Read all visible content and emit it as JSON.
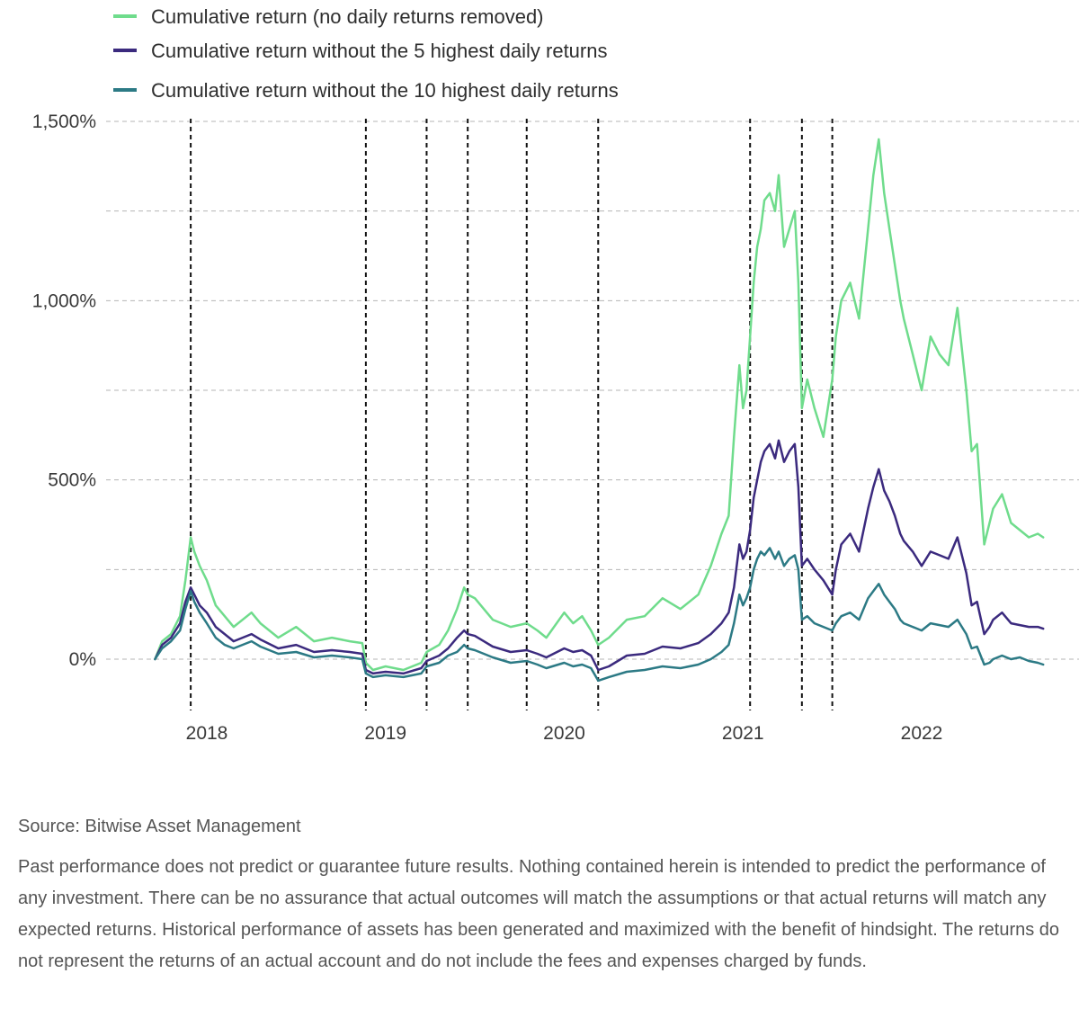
{
  "chart_data": {
    "type": "line",
    "title": "",
    "xlabel": "",
    "ylabel": "",
    "ylim": [
      -200,
      1500
    ],
    "y_ticks": [
      {
        "value": 0,
        "label": "0%"
      },
      {
        "value": 500,
        "label": "500%"
      },
      {
        "value": 1000,
        "label": "1,000%"
      },
      {
        "value": 1500,
        "label": "1,500%"
      }
    ],
    "y_gridlines": [
      0,
      250,
      500,
      750,
      1000,
      1250,
      1500
    ],
    "x_range": [
      2017.5,
      2022.9
    ],
    "x_ticks": [
      {
        "value": 2018.0,
        "label": "2018"
      },
      {
        "value": 2019.0,
        "label": "2019"
      },
      {
        "value": 2020.0,
        "label": "2020"
      },
      {
        "value": 2021.0,
        "label": "2021"
      },
      {
        "value": 2022.0,
        "label": "2022"
      }
    ],
    "event_lines": [
      2017.91,
      2018.89,
      2019.23,
      2019.46,
      2019.79,
      2020.19,
      2021.04,
      2021.33,
      2021.5
    ],
    "legend": [
      {
        "label": "Cumulative return (no daily returns removed)",
        "color": "#6fdc8c"
      },
      {
        "label": "Cumulative return without the 5 highest daily returns",
        "color": "#3b2a7e"
      },
      {
        "label": "Cumulative return without the 10 highest daily returns",
        "color": "#2c7a85"
      }
    ],
    "series": [
      {
        "name": "Cumulative return (no daily returns removed)",
        "color": "#6fdc8c",
        "x": [
          2017.71,
          2017.75,
          2017.8,
          2017.85,
          2017.88,
          2017.91,
          2017.93,
          2017.96,
          2018.0,
          2018.05,
          2018.1,
          2018.15,
          2018.25,
          2018.3,
          2018.4,
          2018.5,
          2018.6,
          2018.7,
          2018.8,
          2018.87,
          2018.89,
          2018.93,
          2019.0,
          2019.1,
          2019.2,
          2019.23,
          2019.3,
          2019.35,
          2019.4,
          2019.44,
          2019.46,
          2019.5,
          2019.55,
          2019.6,
          2019.7,
          2019.79,
          2019.85,
          2019.9,
          2020.0,
          2020.05,
          2020.1,
          2020.15,
          2020.19,
          2020.25,
          2020.35,
          2020.45,
          2020.55,
          2020.65,
          2020.75,
          2020.82,
          2020.88,
          2020.92,
          2020.95,
          2020.98,
          2021.0,
          2021.02,
          2021.04,
          2021.06,
          2021.08,
          2021.1,
          2021.12,
          2021.15,
          2021.18,
          2021.2,
          2021.23,
          2021.26,
          2021.29,
          2021.31,
          2021.33,
          2021.36,
          2021.4,
          2021.45,
          2021.5,
          2021.52,
          2021.55,
          2021.6,
          2021.65,
          2021.7,
          2021.73,
          2021.76,
          2021.79,
          2021.82,
          2021.85,
          2021.88,
          2021.9,
          2021.95,
          2022.0,
          2022.05,
          2022.1,
          2022.15,
          2022.2,
          2022.25,
          2022.28,
          2022.31,
          2022.35,
          2022.38,
          2022.4,
          2022.45,
          2022.5,
          2022.55,
          2022.6,
          2022.65,
          2022.68
        ],
        "values": [
          0,
          50,
          70,
          120,
          220,
          340,
          300,
          260,
          220,
          150,
          120,
          90,
          130,
          100,
          60,
          90,
          50,
          60,
          50,
          45,
          -10,
          -30,
          -20,
          -30,
          -10,
          20,
          40,
          80,
          140,
          200,
          180,
          170,
          140,
          110,
          90,
          100,
          80,
          60,
          130,
          100,
          120,
          80,
          40,
          60,
          110,
          120,
          170,
          140,
          180,
          260,
          350,
          400,
          620,
          820,
          700,
          750,
          900,
          1050,
          1150,
          1200,
          1280,
          1300,
          1250,
          1350,
          1150,
          1200,
          1250,
          1050,
          700,
          780,
          700,
          620,
          780,
          900,
          1000,
          1050,
          950,
          1200,
          1350,
          1450,
          1300,
          1200,
          1100,
          1000,
          950,
          850,
          750,
          900,
          850,
          820,
          980,
          750,
          580,
          600,
          320,
          380,
          420,
          460,
          380,
          360,
          340,
          350,
          340
        ]
      },
      {
        "name": "Cumulative return without the 5 highest daily returns",
        "color": "#3b2a7e",
        "x": [
          2017.71,
          2017.75,
          2017.8,
          2017.85,
          2017.88,
          2017.91,
          2017.93,
          2017.96,
          2018.0,
          2018.05,
          2018.1,
          2018.15,
          2018.25,
          2018.3,
          2018.4,
          2018.5,
          2018.6,
          2018.7,
          2018.8,
          2018.87,
          2018.89,
          2018.93,
          2019.0,
          2019.1,
          2019.2,
          2019.23,
          2019.3,
          2019.35,
          2019.4,
          2019.44,
          2019.46,
          2019.5,
          2019.55,
          2019.6,
          2019.7,
          2019.79,
          2019.85,
          2019.9,
          2020.0,
          2020.05,
          2020.1,
          2020.15,
          2020.19,
          2020.25,
          2020.35,
          2020.45,
          2020.55,
          2020.65,
          2020.75,
          2020.82,
          2020.88,
          2020.92,
          2020.95,
          2020.98,
          2021.0,
          2021.02,
          2021.04,
          2021.06,
          2021.08,
          2021.1,
          2021.12,
          2021.15,
          2021.18,
          2021.2,
          2021.23,
          2021.26,
          2021.29,
          2021.31,
          2021.33,
          2021.36,
          2021.4,
          2021.45,
          2021.5,
          2021.52,
          2021.55,
          2021.6,
          2021.65,
          2021.7,
          2021.73,
          2021.76,
          2021.79,
          2021.82,
          2021.85,
          2021.88,
          2021.9,
          2021.95,
          2022.0,
          2022.05,
          2022.1,
          2022.15,
          2022.2,
          2022.25,
          2022.28,
          2022.31,
          2022.35,
          2022.38,
          2022.4,
          2022.45,
          2022.5,
          2022.55,
          2022.6,
          2022.65,
          2022.68
        ],
        "values": [
          0,
          40,
          60,
          100,
          160,
          200,
          180,
          150,
          130,
          90,
          70,
          50,
          70,
          55,
          30,
          40,
          20,
          25,
          20,
          15,
          -30,
          -40,
          -35,
          -40,
          -25,
          -5,
          10,
          30,
          60,
          80,
          70,
          65,
          50,
          35,
          20,
          25,
          15,
          5,
          30,
          20,
          25,
          10,
          -30,
          -20,
          10,
          15,
          35,
          30,
          45,
          70,
          100,
          130,
          200,
          320,
          280,
          300,
          360,
          450,
          500,
          550,
          580,
          600,
          560,
          610,
          550,
          580,
          600,
          480,
          260,
          280,
          250,
          220,
          180,
          250,
          320,
          350,
          300,
          420,
          480,
          530,
          470,
          440,
          400,
          350,
          330,
          300,
          260,
          300,
          290,
          280,
          340,
          240,
          150,
          160,
          70,
          90,
          110,
          130,
          100,
          95,
          90,
          90,
          85
        ]
      },
      {
        "name": "Cumulative return without the 10 highest daily returns",
        "color": "#2c7a85",
        "x": [
          2017.71,
          2017.75,
          2017.8,
          2017.85,
          2017.88,
          2017.91,
          2017.93,
          2017.96,
          2018.0,
          2018.05,
          2018.1,
          2018.15,
          2018.25,
          2018.3,
          2018.4,
          2018.5,
          2018.6,
          2018.7,
          2018.8,
          2018.87,
          2018.89,
          2018.93,
          2019.0,
          2019.1,
          2019.2,
          2019.23,
          2019.3,
          2019.35,
          2019.4,
          2019.44,
          2019.46,
          2019.5,
          2019.55,
          2019.6,
          2019.7,
          2019.79,
          2019.85,
          2019.9,
          2020.0,
          2020.05,
          2020.1,
          2020.15,
          2020.19,
          2020.25,
          2020.35,
          2020.45,
          2020.55,
          2020.65,
          2020.75,
          2020.82,
          2020.88,
          2020.92,
          2020.95,
          2020.98,
          2021.0,
          2021.02,
          2021.04,
          2021.06,
          2021.08,
          2021.1,
          2021.12,
          2021.15,
          2021.18,
          2021.2,
          2021.23,
          2021.26,
          2021.29,
          2021.31,
          2021.33,
          2021.36,
          2021.4,
          2021.45,
          2021.5,
          2021.52,
          2021.55,
          2021.6,
          2021.65,
          2021.7,
          2021.73,
          2021.76,
          2021.79,
          2021.82,
          2021.85,
          2021.88,
          2021.9,
          2021.95,
          2022.0,
          2022.05,
          2022.1,
          2022.15,
          2022.2,
          2022.25,
          2022.28,
          2022.31,
          2022.35,
          2022.38,
          2022.4,
          2022.45,
          2022.5,
          2022.55,
          2022.6,
          2022.65,
          2022.68
        ],
        "values": [
          0,
          30,
          50,
          80,
          140,
          190,
          160,
          130,
          100,
          60,
          40,
          30,
          50,
          35,
          15,
          20,
          5,
          10,
          5,
          0,
          -40,
          -50,
          -45,
          -50,
          -40,
          -20,
          -10,
          10,
          20,
          40,
          30,
          25,
          15,
          5,
          -10,
          -5,
          -15,
          -25,
          -10,
          -20,
          -15,
          -25,
          -60,
          -50,
          -35,
          -30,
          -20,
          -25,
          -15,
          0,
          20,
          40,
          100,
          180,
          150,
          170,
          200,
          250,
          280,
          300,
          290,
          310,
          280,
          300,
          260,
          280,
          290,
          250,
          110,
          120,
          100,
          90,
          80,
          100,
          120,
          130,
          110,
          170,
          190,
          210,
          180,
          160,
          140,
          110,
          100,
          90,
          80,
          100,
          95,
          90,
          110,
          70,
          30,
          35,
          -15,
          -10,
          0,
          10,
          0,
          5,
          -5,
          -10,
          -15
        ]
      }
    ]
  },
  "source_text": "Source: Bitwise Asset Management",
  "disclaimer_text": "Past performance does not predict or guarantee future results. Nothing contained herein is intended to predict the performance of any investment. There can be no assurance that actual outcomes will match the assumptions or that actual returns will match any expected returns. Historical performance of assets has been generated and maximized with the benefit of hindsight. The returns do not represent the returns of an actual account and do not include the fees and expenses charged by funds."
}
